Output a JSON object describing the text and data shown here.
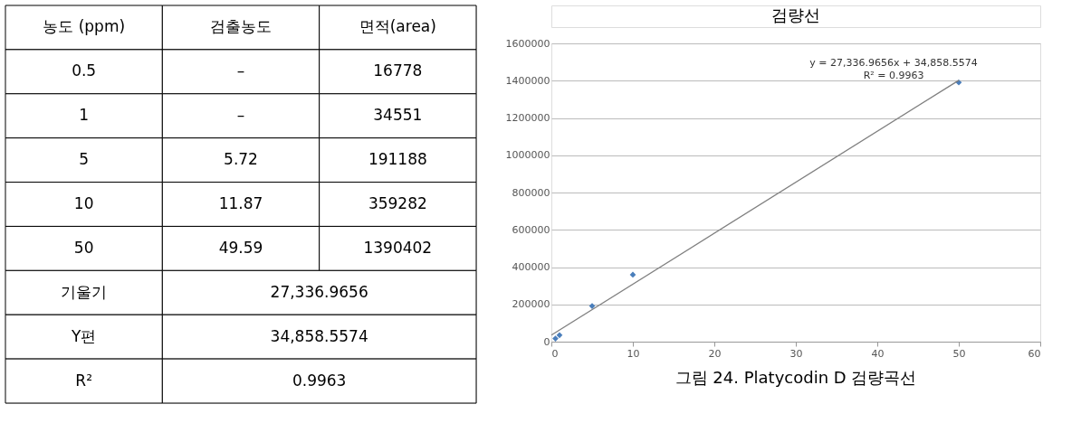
{
  "chart_data": [
    {
      "type": "other",
      "categories": [
        "농도 (ppm)",
        "검출농도",
        "면적(area)"
      ],
      "cell_labels": [
        [
          "0.5",
          "–",
          "16778"
        ],
        [
          "1",
          "–",
          "34551"
        ],
        [
          "5",
          "5.72",
          "191188"
        ],
        [
          "10",
          "11.87",
          "359282"
        ],
        [
          "50",
          "49.59",
          "1390402"
        ],
        [
          "기울기",
          "27,336.9656",
          null
        ],
        [
          "Y편",
          "34,858.5574",
          null
        ],
        [
          "R²",
          "0.9963",
          null
        ]
      ]
    },
    {
      "type": "scatter",
      "title": "검량선",
      "series": [
        {
          "type": "scatter",
          "color": "#4a7ebb",
          "marker": "diamond",
          "x": [
            0.5,
            1,
            5,
            10,
            50
          ],
          "values": [
            16778,
            34551,
            191188,
            359282,
            1390402
          ]
        },
        {
          "type": "line",
          "color": "#7f7f7f",
          "line_style": "solid",
          "x": [
            0,
            50
          ],
          "values": [
            35000,
            1402000
          ]
        }
      ],
      "xlim": [
        0,
        60
      ],
      "xticks": [
        0,
        10,
        20,
        30,
        40,
        50,
        60
      ],
      "ylim": [
        0,
        1600000
      ],
      "yticks": [
        0,
        200000,
        400000,
        600000,
        800000,
        1000000,
        1200000,
        1400000,
        1600000
      ],
      "grid": "y",
      "annotations": [
        "y = 27,336.9656x + 34,858.5574",
        "R² = 0.9963",
        "그림 24. Platycodin D 검량곡선"
      ]
    }
  ]
}
